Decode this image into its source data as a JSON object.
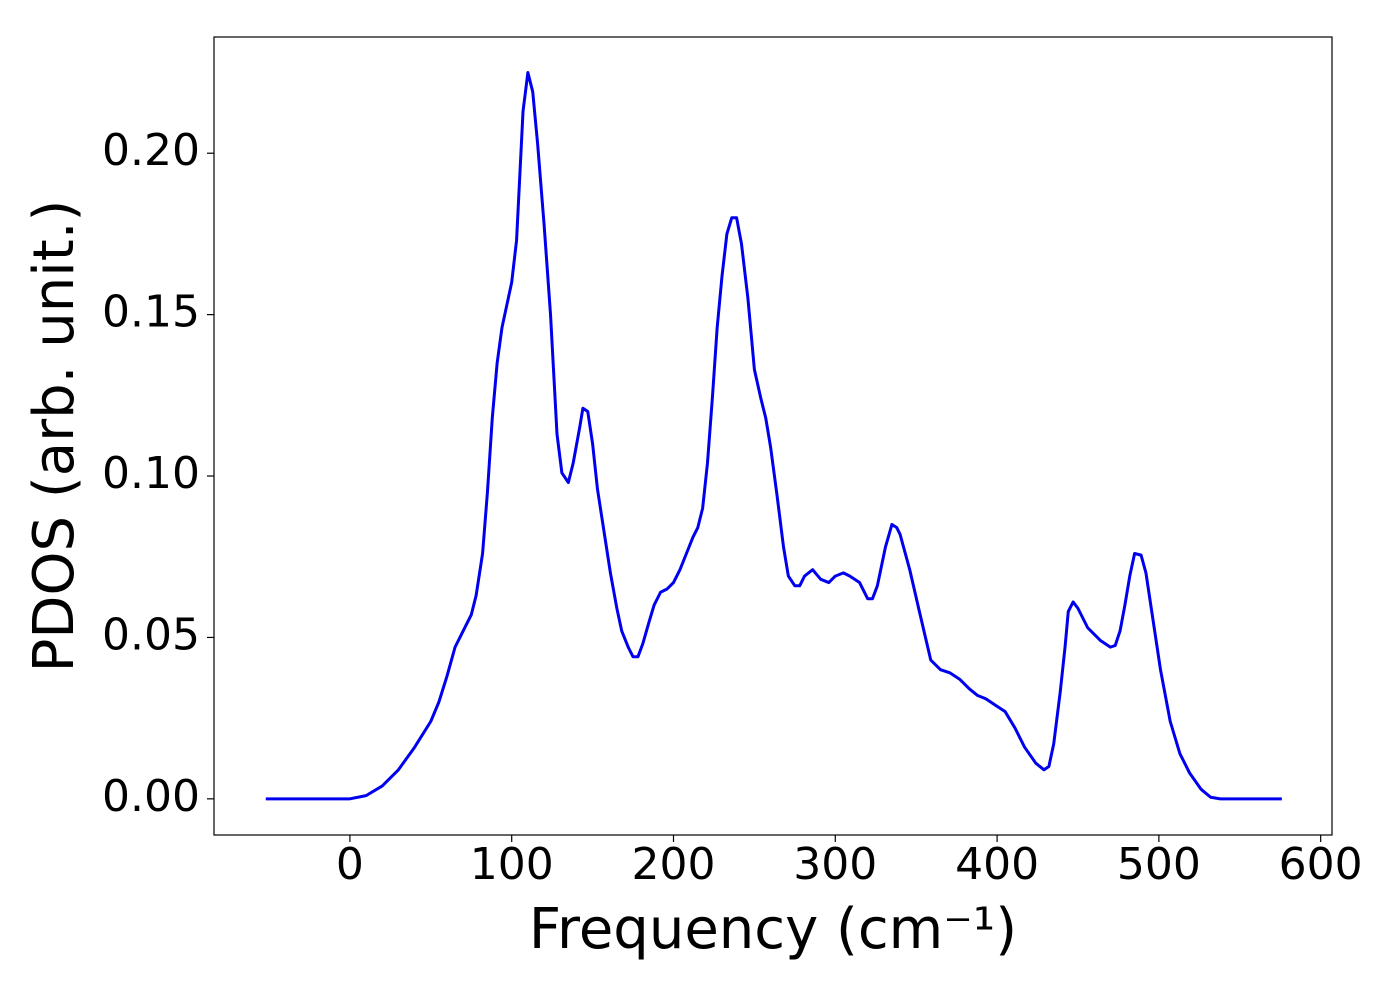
{
  "chart_data": {
    "type": "line",
    "xlabel": "Frequency (cm⁻¹)",
    "ylabel": "PDOS (arb. unit.)",
    "x": [
      -52,
      0,
      10,
      20,
      30,
      40,
      50,
      55,
      60,
      65,
      70,
      75,
      78,
      82,
      85,
      88,
      91,
      94,
      100,
      103,
      107,
      110,
      113,
      116,
      120,
      124,
      128,
      131,
      135,
      138,
      142,
      144,
      147,
      150,
      153,
      157,
      161,
      165,
      168,
      172,
      175,
      178,
      181,
      185,
      188,
      192,
      196,
      200,
      204,
      208,
      212,
      215,
      218,
      221,
      224,
      227,
      230,
      233,
      236,
      239,
      242,
      246,
      250,
      254,
      257,
      260,
      264,
      268,
      271,
      275,
      278,
      281,
      286,
      291,
      296,
      300,
      305,
      309,
      315,
      320,
      323,
      326,
      331,
      335,
      338,
      340,
      346,
      352,
      359,
      365,
      371,
      377,
      383,
      388,
      393,
      399,
      405,
      411,
      417,
      424,
      429,
      432,
      435,
      439,
      442,
      444,
      447,
      450,
      456,
      464,
      470,
      473,
      476,
      479,
      482,
      485,
      489,
      492,
      495,
      501,
      507,
      513,
      519,
      526,
      532,
      538,
      576
    ],
    "series": [
      {
        "color": "#0000ee",
        "values": [
          0,
          0,
          0.001,
          0.004,
          0.009,
          0.016,
          0.024,
          0.03,
          0.038,
          0.047,
          0.052,
          0.057,
          0.063,
          0.076,
          0.095,
          0.118,
          0.135,
          0.146,
          0.16,
          0.173,
          0.213,
          0.225,
          0.219,
          0.203,
          0.178,
          0.15,
          0.113,
          0.101,
          0.098,
          0.104,
          0.115,
          0.121,
          0.12,
          0.11,
          0.096,
          0.083,
          0.07,
          0.059,
          0.052,
          0.047,
          0.044,
          0.044,
          0.048,
          0.055,
          0.06,
          0.064,
          0.065,
          0.067,
          0.071,
          0.076,
          0.081,
          0.084,
          0.09,
          0.104,
          0.124,
          0.146,
          0.162,
          0.175,
          0.18,
          0.18,
          0.172,
          0.155,
          0.133,
          0.124,
          0.118,
          0.109,
          0.094,
          0.078,
          0.069,
          0.066,
          0.066,
          0.069,
          0.071,
          0.068,
          0.067,
          0.069,
          0.07,
          0.069,
          0.067,
          0.062,
          0.062,
          0.066,
          0.078,
          0.085,
          0.084,
          0.082,
          0.071,
          0.058,
          0.043,
          0.04,
          0.039,
          0.037,
          0.034,
          0.032,
          0.031,
          0.029,
          0.027,
          0.022,
          0.016,
          0.011,
          0.009,
          0.01,
          0.017,
          0.033,
          0.047,
          0.058,
          0.061,
          0.059,
          0.053,
          0.049,
          0.047,
          0.0475,
          0.052,
          0.06,
          0.069,
          0.076,
          0.0755,
          0.07,
          0.06,
          0.04,
          0.024,
          0.014,
          0.008,
          0.003,
          0.0005,
          0,
          0
        ]
      }
    ],
    "xlim": [
      -84,
      607
    ],
    "ylim": [
      -0.0112,
      0.236
    ],
    "xticks": [
      0,
      100,
      200,
      300,
      400,
      500,
      600
    ],
    "yticks": [
      {
        "value": 0,
        "label": "0.00"
      },
      {
        "value": 0.05,
        "label": "0.05"
      },
      {
        "value": 0.1,
        "label": "0.10"
      },
      {
        "value": 0.15,
        "label": "0.15"
      },
      {
        "value": 0.2,
        "label": "0.20"
      }
    ]
  }
}
